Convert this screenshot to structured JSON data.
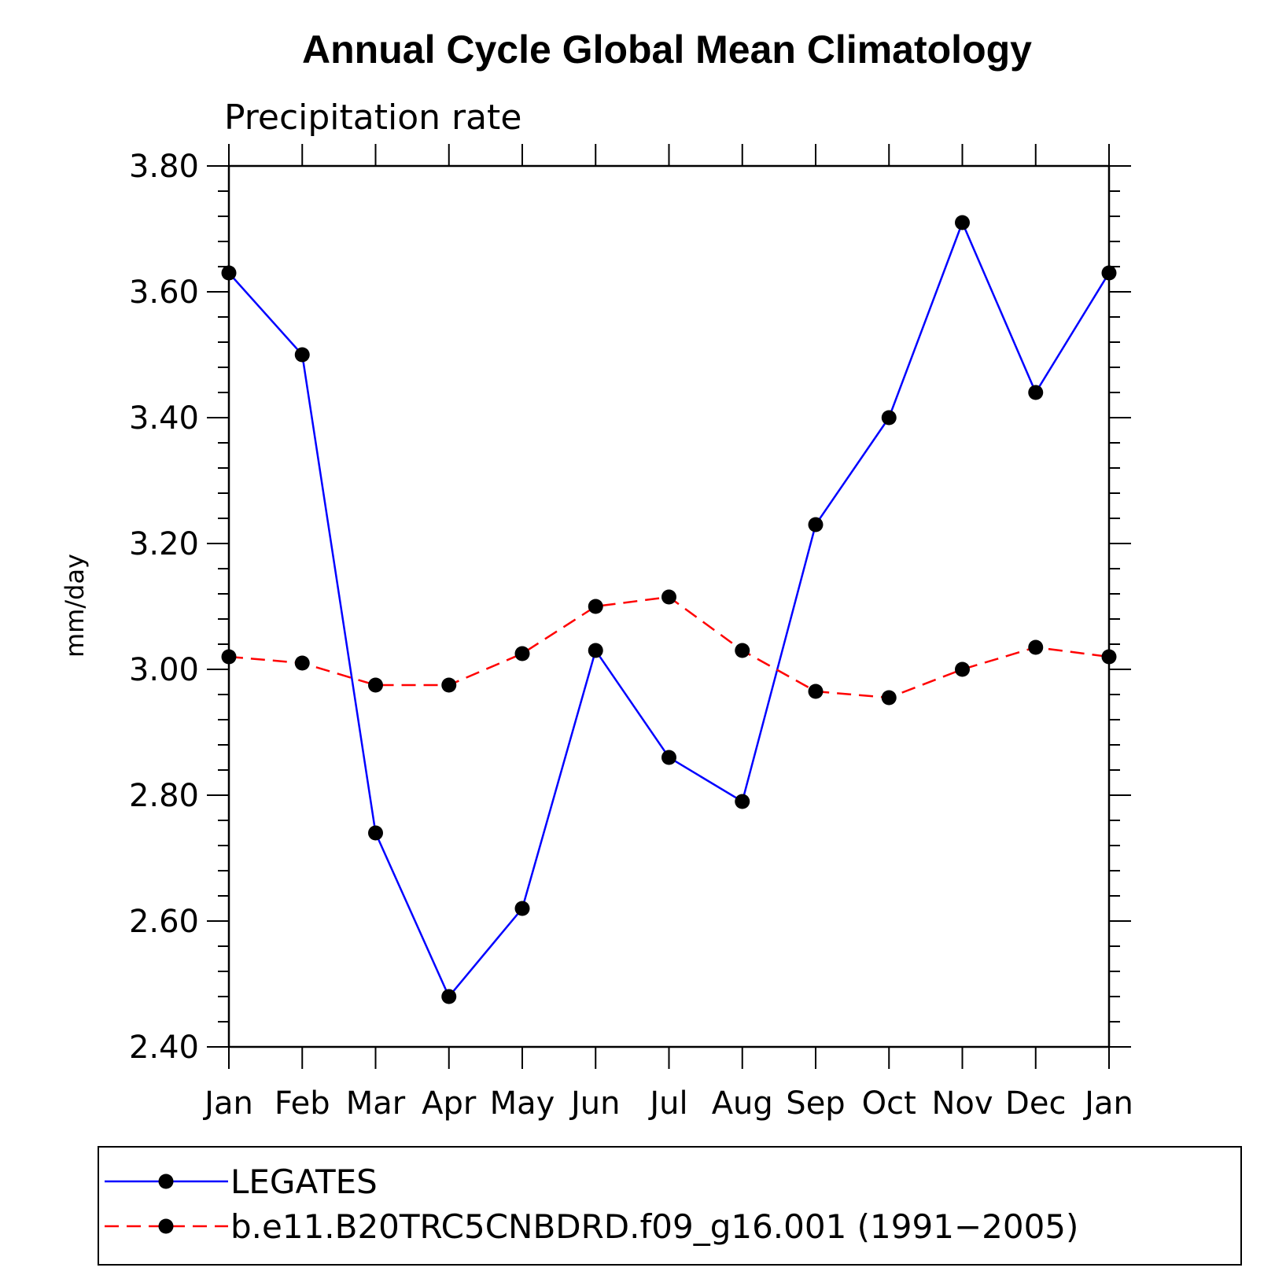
{
  "chart_data": {
    "type": "line",
    "title": "Annual Cycle Global Mean Climatology",
    "subtitle": "Precipitation rate",
    "xlabel": "",
    "ylabel": "mm/day",
    "categories": [
      "Jan",
      "Feb",
      "Mar",
      "Apr",
      "May",
      "Jun",
      "Jul",
      "Aug",
      "Sep",
      "Oct",
      "Nov",
      "Dec",
      "Jan"
    ],
    "ylim": [
      2.4,
      3.8
    ],
    "yticks": [
      "2.40",
      "2.60",
      "2.80",
      "3.00",
      "3.20",
      "3.40",
      "3.60",
      "3.80"
    ],
    "grid": false,
    "legend_position": "bottom",
    "series": [
      {
        "name": "LEGATES",
        "color": "#0000ff",
        "dash": "solid",
        "values": [
          3.63,
          3.5,
          2.74,
          2.48,
          2.62,
          3.03,
          2.86,
          2.79,
          3.23,
          3.4,
          3.71,
          3.44,
          3.63
        ]
      },
      {
        "name": "b.e11.B20TRC5CNBDRD.f09_g16.001 (1991−2005)",
        "color": "#ff0000",
        "dash": "dashed",
        "values": [
          3.02,
          3.01,
          2.975,
          2.975,
          3.025,
          3.1,
          3.115,
          3.03,
          2.965,
          2.955,
          3.0,
          3.035,
          3.02
        ]
      }
    ]
  }
}
